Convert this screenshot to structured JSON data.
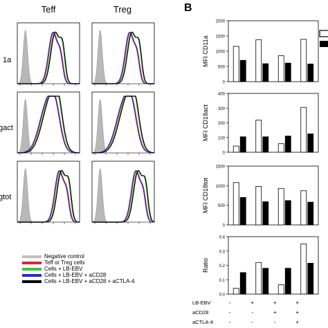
{
  "panelA": {
    "col_headers": [
      "Teff",
      "Treg"
    ],
    "row_labels": [
      "1a",
      "act",
      "tot"
    ],
    "row_label_prefix": [
      "",
      "g",
      "g"
    ]
  },
  "panelB": {
    "letter": "B",
    "categories_row": {
      "labels": [
        "LB-EBV",
        "aCD28",
        "aCTLA-4"
      ],
      "marks": [
        [
          "-",
          "+",
          "+",
          "+"
        ],
        [
          "-",
          "-",
          "+",
          "+"
        ],
        [
          "-",
          "-",
          "-",
          "+"
        ]
      ]
    }
  },
  "legend": [
    {
      "label": "Negative control",
      "color": "#c0c0c0"
    },
    {
      "label": "Teff or Treg cells",
      "color": "#e0262b"
    },
    {
      "label": "Cells + LB-EBV",
      "color": "#37c437"
    },
    {
      "label": "Cells + LB-EBV + aCD28",
      "color": "#2a2ad0"
    },
    {
      "label": "Cells + LB-EBV + aCD28 + aCTLA-4",
      "color": "#000000"
    }
  ],
  "chart_data": [
    {
      "type": "bar",
      "ylabel": "MFI CD11a",
      "ylim": [
        0,
        2000
      ],
      "yticks": [
        0,
        500,
        1000,
        1500,
        2000
      ],
      "series": [
        {
          "values": [
            1160,
            1380,
            850,
            1390
          ],
          "color": "#ffffff"
        },
        {
          "values": [
            700,
            590,
            610,
            580
          ],
          "color": "#000000"
        }
      ]
    },
    {
      "type": "bar",
      "ylabel": "MFI CD18act",
      "ylim": [
        0,
        400
      ],
      "yticks": [
        0,
        100,
        200,
        300,
        400
      ],
      "series": [
        {
          "values": [
            42,
            218,
            58,
            305
          ],
          "color": "#ffffff"
        },
        {
          "values": [
            105,
            105,
            110,
            125
          ],
          "color": "#000000"
        }
      ]
    },
    {
      "type": "bar",
      "ylabel": "MFI CD18tot",
      "ylim": [
        0,
        1500
      ],
      "yticks": [
        0,
        500,
        1000,
        1500
      ],
      "series": [
        {
          "values": [
            1080,
            980,
            930,
            870
          ],
          "color": "#ffffff"
        },
        {
          "values": [
            700,
            590,
            620,
            580
          ],
          "color": "#000000"
        }
      ]
    },
    {
      "type": "bar",
      "ylabel": "Ratio",
      "ylim": [
        0,
        0.4
      ],
      "yticks": [
        0.0,
        0.1,
        0.2,
        0.3,
        0.4
      ],
      "series": [
        {
          "values": [
            0.04,
            0.22,
            0.065,
            0.35
          ],
          "color": "#ffffff"
        },
        {
          "values": [
            0.15,
            0.18,
            0.18,
            0.215
          ],
          "color": "#000000"
        }
      ]
    }
  ]
}
